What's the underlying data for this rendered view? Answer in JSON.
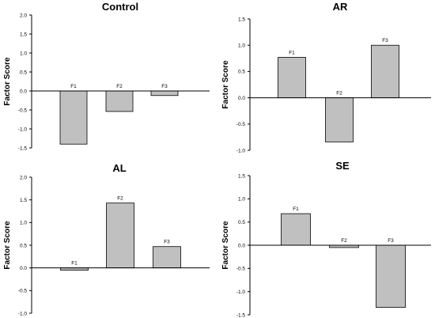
{
  "chart_data": [
    {
      "type": "bar",
      "title": "Control",
      "ylabel": "Factor Score",
      "categories": [
        "F1",
        "F2",
        "F3"
      ],
      "values": [
        -1.4,
        -0.54,
        -0.12
      ],
      "ylim": [
        -1.5,
        2.0
      ],
      "yticks": [
        "2.0",
        "1.5",
        "1.0",
        "0.5",
        "0.0",
        "-0.5",
        "-1.0",
        "-1.5"
      ],
      "bar_color": "#c0c0c0"
    },
    {
      "type": "bar",
      "title": "AR",
      "ylabel": "Factor Score",
      "categories": [
        "F1",
        "F2",
        "F3"
      ],
      "values": [
        0.77,
        -0.84,
        1.0
      ],
      "ylim": [
        -1.0,
        1.5
      ],
      "yticks": [
        "1.5",
        "1.0",
        "0.5",
        "0.0",
        "-0.5",
        "-1.0"
      ],
      "bar_color": "#c0c0c0"
    },
    {
      "type": "bar",
      "title": "AL",
      "ylabel": "Factor Score",
      "categories": [
        "F1",
        "F2",
        "F3"
      ],
      "values": [
        -0.05,
        1.43,
        0.47
      ],
      "ylim": [
        -1.0,
        2.0
      ],
      "yticks": [
        "2.0",
        "1.5",
        "1.0",
        "0.5",
        "0.0",
        "-0.5",
        "-1.0"
      ],
      "bar_color": "#c0c0c0"
    },
    {
      "type": "bar",
      "title": "SE",
      "ylabel": "Factor Score",
      "categories": [
        "F1",
        "F2",
        "F3"
      ],
      "values": [
        0.68,
        -0.05,
        -1.34
      ],
      "ylim": [
        -1.5,
        1.5
      ],
      "yticks": [
        "1.5",
        "1.0",
        "0.5",
        "0.0",
        "-0.5",
        "-1.0",
        "-1.5"
      ],
      "bar_color": "#c0c0c0"
    }
  ]
}
